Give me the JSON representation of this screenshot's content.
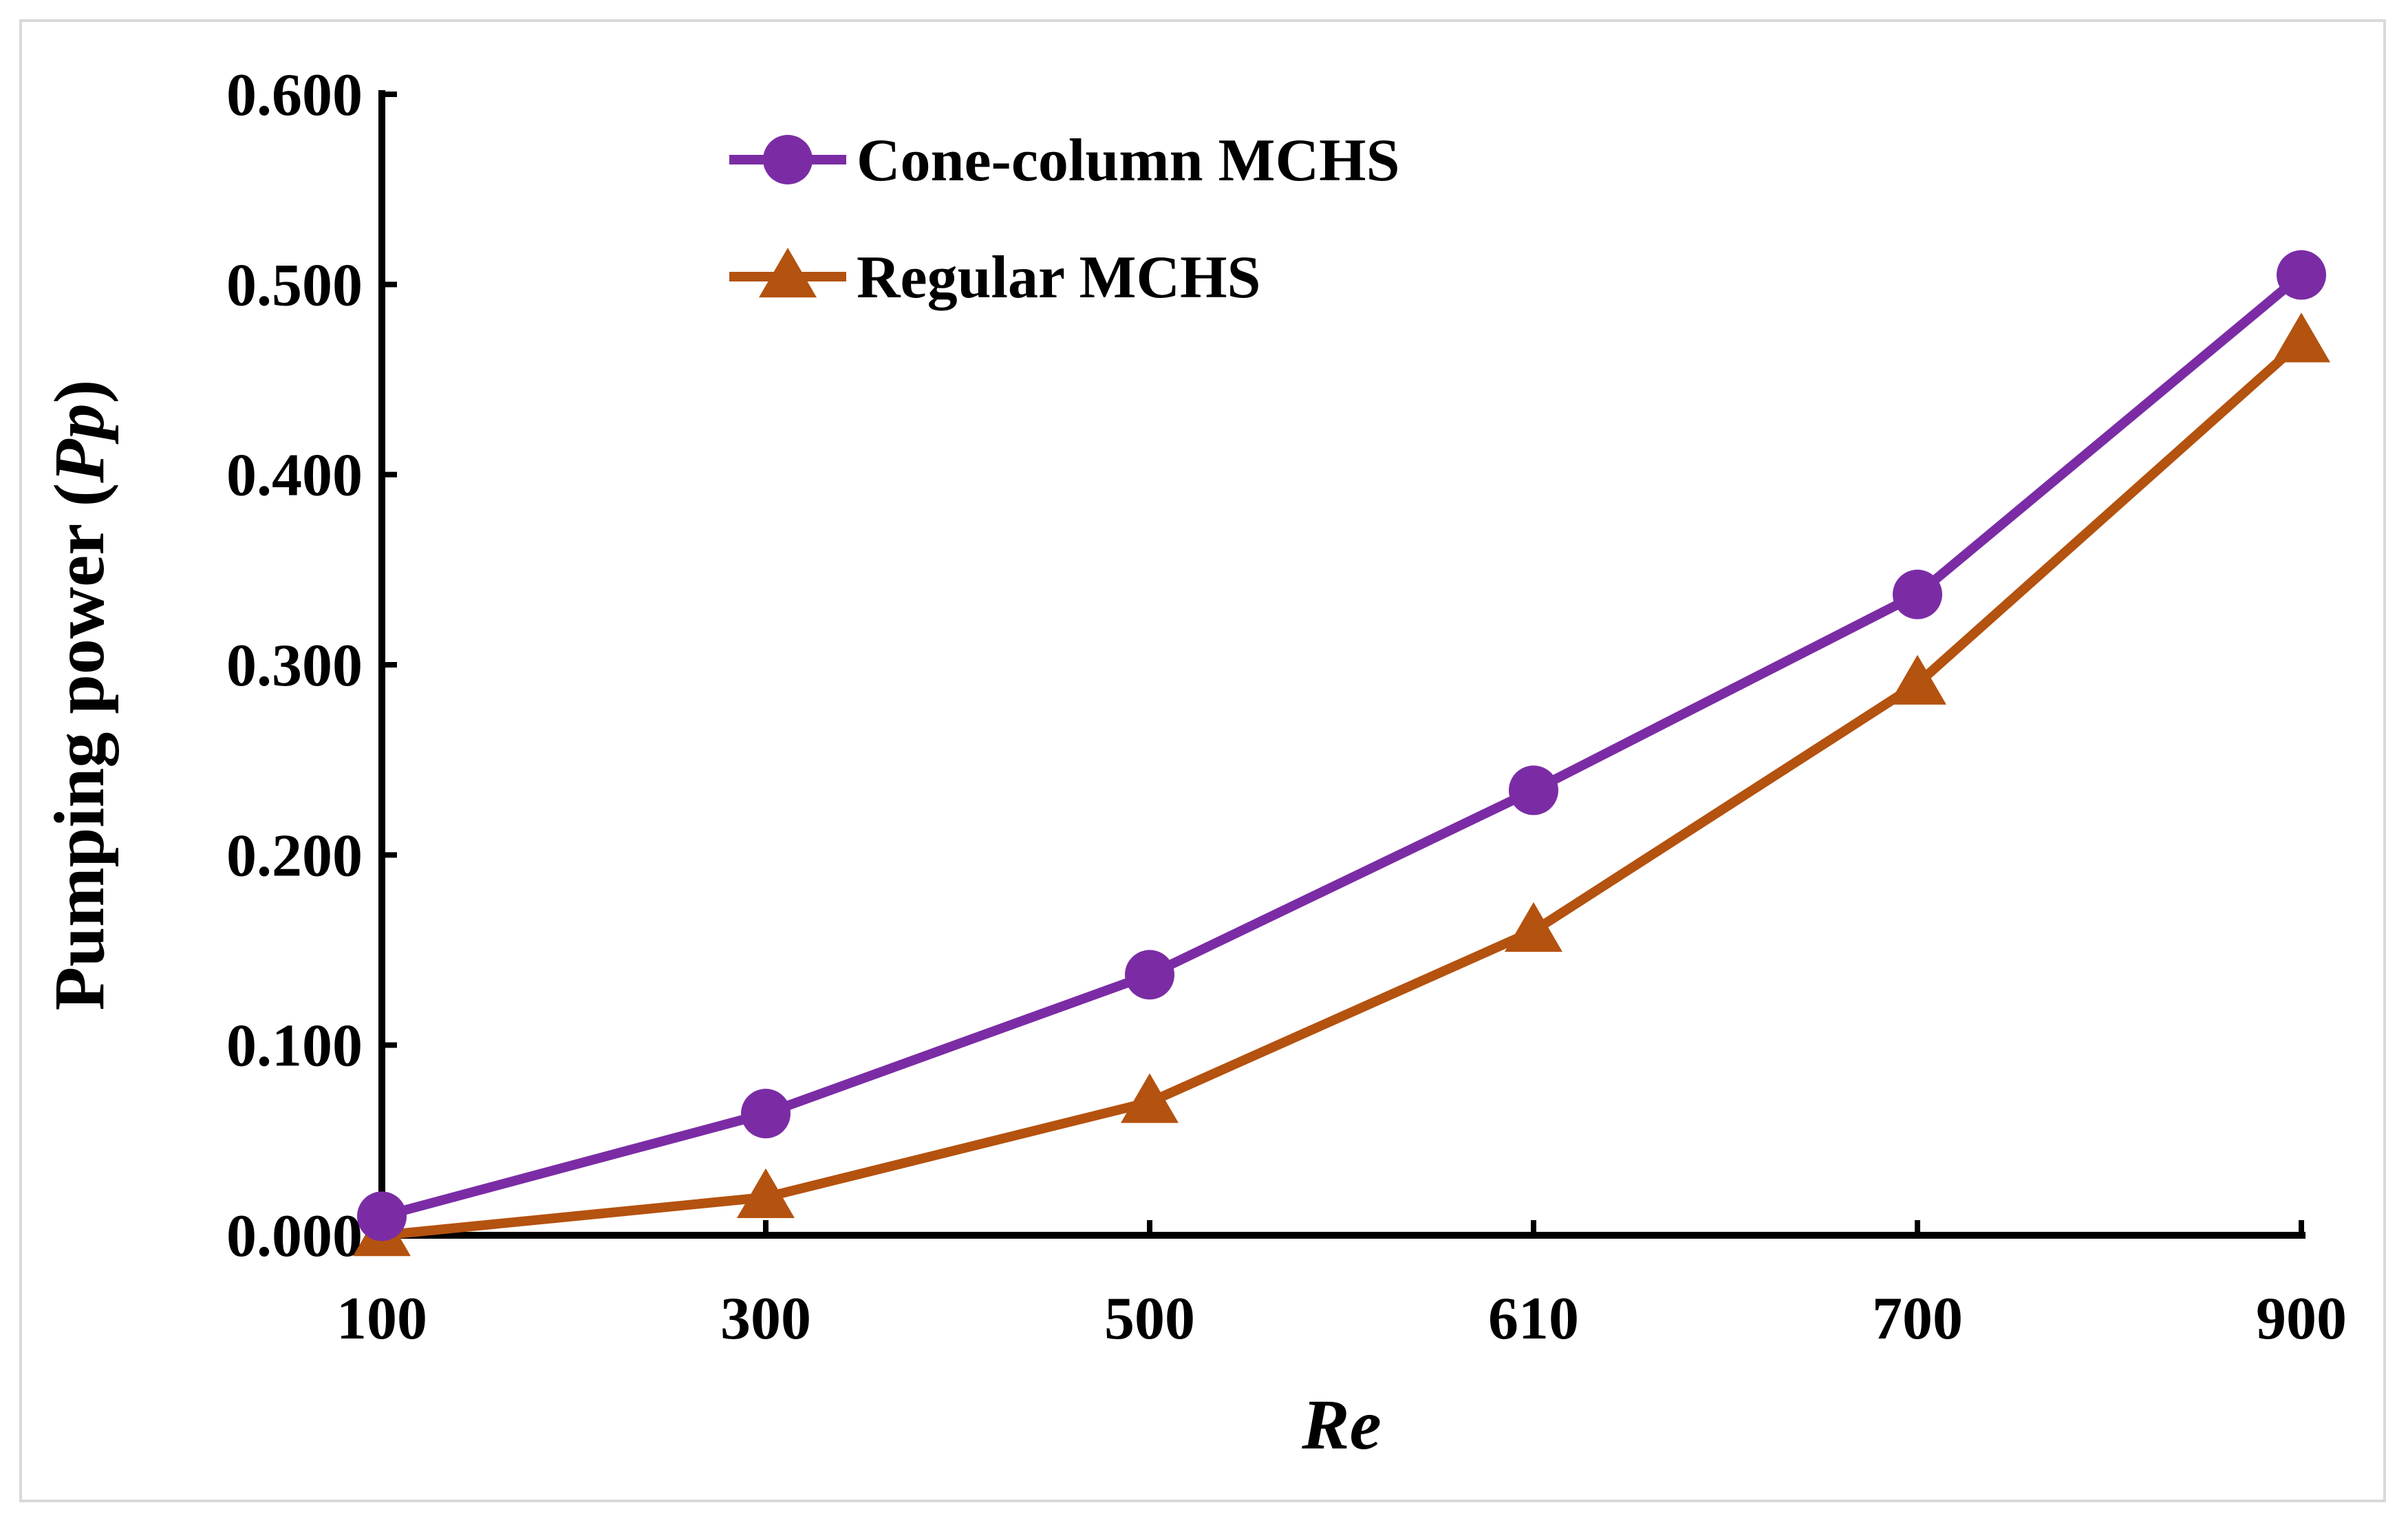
{
  "chart_data": {
    "type": "line",
    "title": "",
    "xlabel": "Re",
    "ylabel_prefix": "Pumping power (",
    "ylabel_symbol": "Pp",
    "ylabel_suffix": ")",
    "categories": [
      "100",
      "300",
      "500",
      "610",
      "700",
      "900"
    ],
    "ylim": [
      0,
      0.6
    ],
    "yticks": [
      "0.000",
      "0.100",
      "0.200",
      "0.300",
      "0.400",
      "0.500",
      "0.600"
    ],
    "grid": false,
    "legend_position": "top-center",
    "series": [
      {
        "name": "Cone-column MCHS",
        "color": "#7b2ca5",
        "marker": "circle",
        "values": [
          0.01,
          0.064,
          0.137,
          0.234,
          0.337,
          0.505
        ]
      },
      {
        "name": "Regular MCHS",
        "color": "#b4520f",
        "marker": "triangle",
        "values": [
          0.0,
          0.02,
          0.07,
          0.16,
          0.29,
          0.47
        ]
      }
    ]
  }
}
